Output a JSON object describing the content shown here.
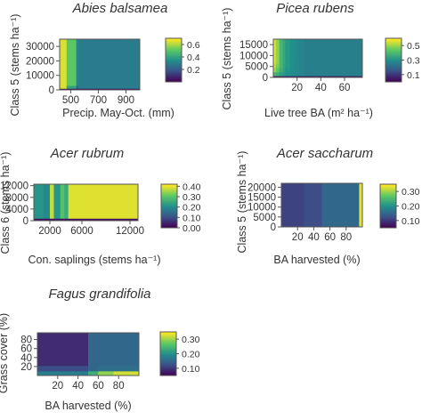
{
  "figure": {
    "colormap": [
      "#440154",
      "#3b528b",
      "#21908d",
      "#5dc963",
      "#fde725"
    ]
  },
  "chart_data": [
    {
      "type": "heatmap",
      "title": "Abies balsamea",
      "xlabel": "Precip. May-Oct. (mm)",
      "ylabel": "Class 5 (stems ha⁻¹)",
      "xlim": [
        420,
        1000
      ],
      "ylim": [
        0,
        35000
      ],
      "xticks": [
        500,
        700,
        900
      ],
      "yticks": [
        0,
        10000,
        20000,
        30000
      ],
      "colorbar": {
        "min": 0.0,
        "max": 0.7,
        "ticks": [
          0.2,
          0.4,
          0.6
        ]
      },
      "x_breaks": [
        420,
        470,
        540,
        555,
        575,
        1000
      ],
      "y_breaks": [
        0,
        1000,
        3000,
        35000
      ],
      "values": [
        [
          0.05,
          0.02,
          0.02,
          0.02,
          0.02
        ],
        [
          0.66,
          0.4,
          0.22,
          0.3,
          0.3
        ],
        [
          0.66,
          0.52,
          0.32,
          0.29,
          0.29
        ]
      ]
    },
    {
      "type": "heatmap",
      "title": "Picea rubens",
      "xlabel": "Live tree BA (m² ha⁻¹)",
      "ylabel": "Class 5 (stems ha⁻¹)",
      "xlim": [
        0,
        75
      ],
      "ylim": [
        0,
        17500
      ],
      "xticks": [
        20,
        40,
        60
      ],
      "yticks": [
        0,
        5000,
        10000,
        15000
      ],
      "colorbar": {
        "min": 0.0,
        "max": 0.6,
        "ticks": [
          0.1,
          0.3,
          0.5
        ]
      },
      "x_breaks": [
        0,
        2,
        5,
        8,
        10,
        14,
        18,
        22,
        26,
        75
      ],
      "y_breaks": [
        0,
        700,
        2500,
        4500,
        6500,
        17500
      ],
      "values": [
        [
          0.02,
          0.02,
          0.02,
          0.02,
          0.02,
          0.02,
          0.02,
          0.02,
          0.02
        ],
        [
          0.4,
          0.38,
          0.34,
          0.32,
          0.3,
          0.29,
          0.28,
          0.27,
          0.26
        ],
        [
          0.52,
          0.45,
          0.38,
          0.34,
          0.31,
          0.29,
          0.28,
          0.27,
          0.26
        ],
        [
          0.56,
          0.48,
          0.4,
          0.35,
          0.32,
          0.3,
          0.28,
          0.27,
          0.26
        ],
        [
          0.58,
          0.5,
          0.4,
          0.36,
          0.32,
          0.3,
          0.28,
          0.27,
          0.26
        ]
      ]
    },
    {
      "type": "heatmap",
      "title": "Acer rubrum",
      "xlabel": "Con. saplings (stems ha⁻¹)",
      "ylabel": "Class 6 (stems ha⁻¹)",
      "xlim": [
        0,
        13000
      ],
      "ylim": [
        0,
        12500
      ],
      "xticks": [
        2000,
        6000,
        12000
      ],
      "xticklabels": [
        "2000",
        "6000",
        "12000"
      ],
      "yticks": [
        0,
        4000,
        8000,
        12000
      ],
      "colorbar": {
        "min": 0.0,
        "max": 0.42,
        "ticks": [
          0.0,
          0.1,
          0.2,
          0.3,
          0.4
        ]
      },
      "x_breaks": [
        0,
        1200,
        2000,
        2500,
        3300,
        3800,
        4300,
        13000
      ],
      "y_breaks": [
        0,
        800,
        12500
      ],
      "values": [
        [
          0.02,
          0.02,
          0.02,
          0.02,
          0.02,
          0.02,
          0.02
        ],
        [
          0.22,
          0.2,
          0.38,
          0.22,
          0.3,
          0.26,
          0.4
        ]
      ]
    },
    {
      "type": "heatmap",
      "title": "Acer saccharum",
      "xlabel": "BA harvested (%)",
      "ylabel": "Class 5 (stems ha⁻¹)",
      "xlim": [
        0,
        100
      ],
      "ylim": [
        0,
        22000
      ],
      "xticks": [
        20,
        40,
        60,
        80
      ],
      "yticks": [
        0,
        5000,
        10000,
        15000,
        20000
      ],
      "colorbar": {
        "min": 0.05,
        "max": 0.35,
        "ticks": [
          0.1,
          0.2,
          0.3
        ]
      },
      "x_breaks": [
        0,
        28,
        50,
        96,
        100
      ],
      "y_breaks": [
        0,
        22000
      ],
      "values": [
        [
          0.11,
          0.12,
          0.15,
          0.34
        ]
      ]
    },
    {
      "type": "heatmap",
      "title": "Fagus grandifolia",
      "xlabel": "BA harvested (%)",
      "ylabel": "Grass cover (%)",
      "xlim": [
        0,
        100
      ],
      "ylim": [
        0,
        95
      ],
      "xticks": [
        20,
        40,
        60,
        80
      ],
      "yticks": [
        20,
        40,
        60,
        80
      ],
      "colorbar": {
        "min": 0.05,
        "max": 0.35,
        "ticks": [
          0.1,
          0.2,
          0.3
        ]
      },
      "x_breaks": [
        0,
        25,
        50,
        60,
        75,
        100
      ],
      "y_breaks": [
        0,
        10,
        22,
        95
      ],
      "values": [
        [
          0.18,
          0.18,
          0.24,
          0.3,
          0.33
        ],
        [
          0.12,
          0.12,
          0.15,
          0.16,
          0.16
        ],
        [
          0.09,
          0.09,
          0.15,
          0.15,
          0.15
        ]
      ]
    }
  ]
}
